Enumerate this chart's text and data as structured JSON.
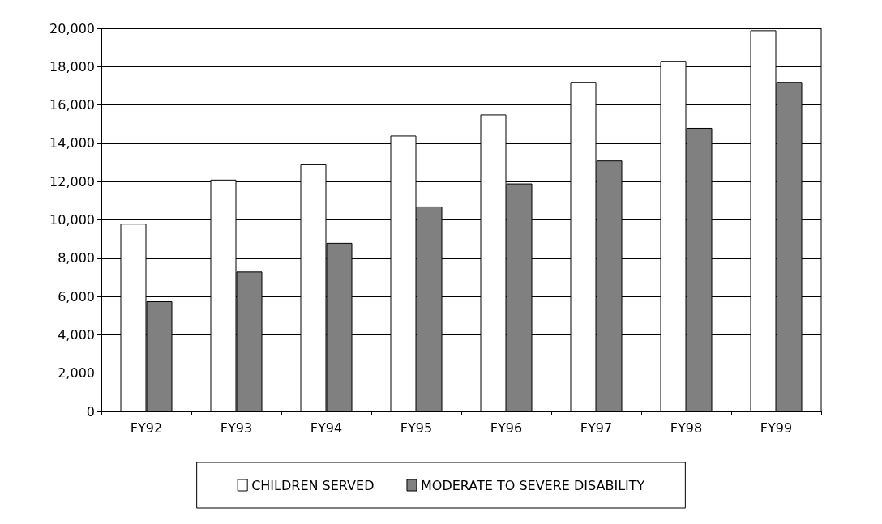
{
  "chart_data": {
    "type": "bar",
    "categories": [
      "FY92",
      "FY93",
      "FY94",
      "FY95",
      "FY96",
      "FY97",
      "FY98",
      "FY99"
    ],
    "series": [
      {
        "name": "CHILDREN SERVED",
        "color": "#ffffff",
        "values": [
          9800,
          12100,
          12900,
          14400,
          15500,
          17200,
          18300,
          19900
        ]
      },
      {
        "name": "MODERATE TO SEVERE DISABILITY",
        "color": "#808080",
        "values": [
          5750,
          7300,
          8800,
          10700,
          11900,
          13100,
          14800,
          17200
        ]
      }
    ],
    "ylim": [
      0,
      20000
    ],
    "yticks": [
      {
        "value": 0,
        "label": "0"
      },
      {
        "value": 2000,
        "label": "2,000"
      },
      {
        "value": 4000,
        "label": "4,000"
      },
      {
        "value": 6000,
        "label": "6,000"
      },
      {
        "value": 8000,
        "label": "8,000"
      },
      {
        "value": 10000,
        "label": "10,000"
      },
      {
        "value": 12000,
        "label": "12,000"
      },
      {
        "value": 14000,
        "label": "14,000"
      },
      {
        "value": 16000,
        "label": "16,000"
      },
      {
        "value": 18000,
        "label": "18,000"
      },
      {
        "value": 20000,
        "label": "20,000"
      }
    ],
    "grid": "y",
    "legend": "bottom"
  }
}
